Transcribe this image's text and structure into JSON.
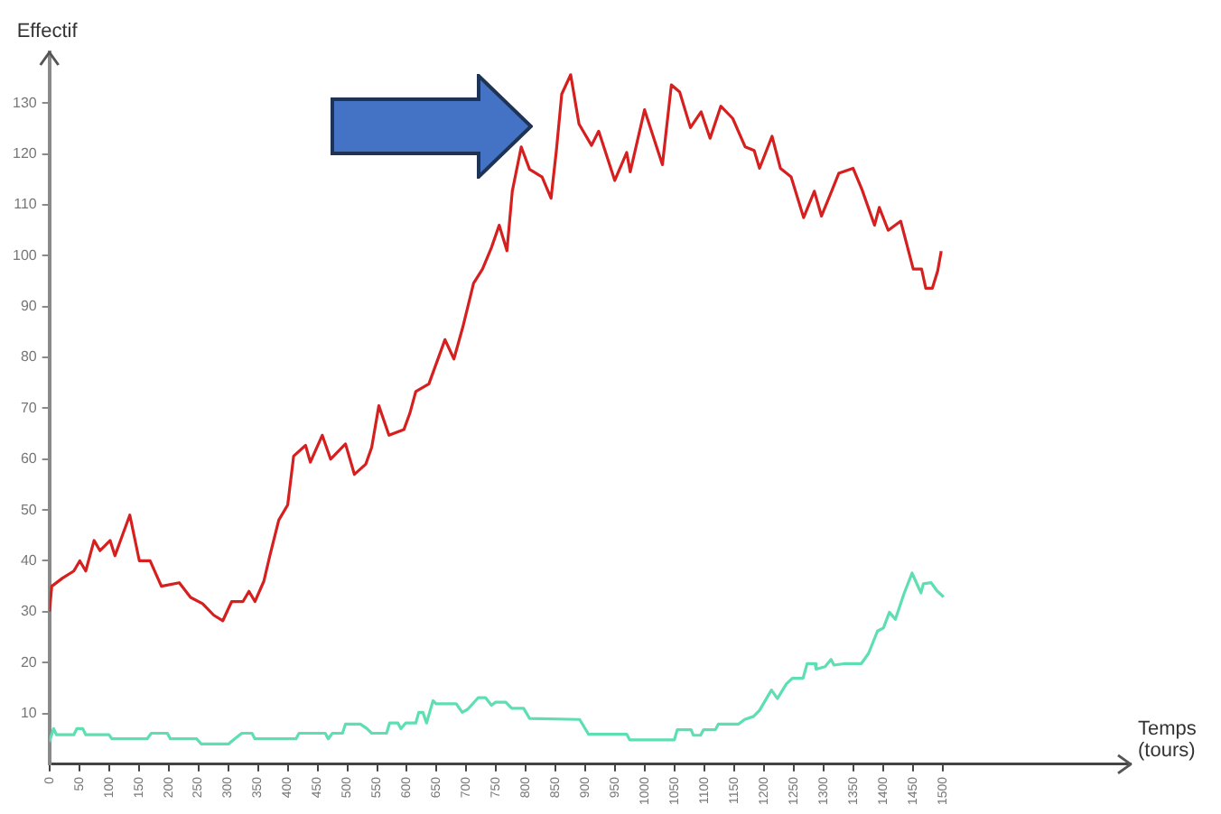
{
  "chart_data": {
    "type": "line",
    "xlabel": "Temps (tours)",
    "ylabel": "Effectif",
    "xlim": [
      0,
      1815
    ],
    "ylim": [
      0,
      140
    ],
    "xticks": [
      0,
      50,
      100,
      150,
      200,
      250,
      300,
      350,
      400,
      450,
      500,
      550,
      600,
      650,
      700,
      750,
      800,
      850,
      900,
      950,
      1000,
      1050,
      1100,
      1150,
      1200,
      1250,
      1300,
      1350,
      1400,
      1450,
      1500
    ],
    "yticks": [
      10,
      20,
      30,
      40,
      50,
      60,
      70,
      80,
      90,
      100,
      110,
      120,
      130
    ],
    "grid": false,
    "legend": false,
    "marker": "none",
    "line_style": "solid",
    "series": [
      {
        "color": "#d62020",
        "x": [
          0,
          4,
          22,
          41,
          51,
          61,
          75,
          85,
          102,
          110,
          124,
          135,
          151,
          169,
          188,
          218,
          237,
          257,
          276,
          291,
          306,
          325,
          335,
          345,
          360,
          370,
          385,
          400,
          410,
          430,
          438,
          458,
          472,
          497,
          512,
          531,
          541,
          553,
          570,
          595,
          605,
          615,
          637,
          664,
          679,
          694,
          712,
          727,
          742,
          755,
          768,
          777,
          792,
          806,
          827,
          842,
          851,
          860,
          875,
          889,
          910,
          922,
          949,
          969,
          975,
          999,
          1029,
          1044,
          1058,
          1076,
          1094,
          1109,
          1127,
          1147,
          1168,
          1183,
          1192,
          1213,
          1227,
          1245,
          1266,
          1284,
          1296,
          1313,
          1325,
          1349,
          1364,
          1385,
          1393,
          1408,
          1429,
          1450,
          1464,
          1471,
          1482,
          1491,
          1497
        ],
        "values": [
          30,
          35,
          36.6,
          38,
          40,
          38,
          44,
          42,
          44,
          41,
          45.5,
          49,
          40,
          40,
          35,
          35.7,
          32.8,
          31.6,
          29.3,
          28.2,
          32,
          32,
          34,
          32,
          36,
          41,
          48,
          51,
          60.6,
          62.7,
          59.4,
          64.7,
          60,
          63,
          57,
          59,
          62.3,
          70.5,
          64.7,
          65.8,
          69,
          73.3,
          74.8,
          83.5,
          79.7,
          86,
          94.6,
          97.4,
          101.6,
          106,
          101,
          112.7,
          121.4,
          117,
          115.5,
          111.3,
          120.7,
          131.8,
          135.6,
          125.9,
          121.7,
          124.5,
          114.8,
          120.3,
          116.5,
          128.7,
          117.9,
          133.6,
          132.2,
          125.2,
          128.3,
          123.1,
          129.4,
          127,
          121.4,
          120.7,
          117.2,
          123.5,
          117.2,
          115.5,
          107.5,
          112.7,
          107.8,
          112.7,
          116.2,
          117.2,
          113,
          106,
          109.5,
          105,
          106.8,
          97.4,
          97.4,
          93.6,
          93.6,
          97,
          100.9
        ]
      },
      {
        "color": "#5edfb2",
        "x": [
          0,
          7,
          12,
          41,
          46,
          56,
          61,
          100,
          105,
          164,
          171,
          198,
          203,
          247,
          255,
          301,
          311,
          323,
          340,
          345,
          414,
          419,
          463,
          468,
          475,
          492,
          497,
          522,
          533,
          541,
          566,
          571,
          585,
          590,
          598,
          615,
          620,
          627,
          633,
          644,
          649,
          683,
          693,
          702,
          720,
          732,
          742,
          749,
          766,
          776,
          796,
          806,
          890,
          905,
          969,
          974,
          1049,
          1054,
          1077,
          1081,
          1093,
          1098,
          1118,
          1123,
          1157,
          1167,
          1182,
          1192,
          1212,
          1222,
          1237,
          1247,
          1265,
          1272,
          1285,
          1287,
          1302,
          1312,
          1317,
          1336,
          1363,
          1375,
          1390,
          1400,
          1410,
          1420,
          1435,
          1448,
          1463,
          1467,
          1480,
          1490,
          1501
        ],
        "values": [
          4.4,
          7,
          5.8,
          5.8,
          7,
          7,
          5.8,
          5.8,
          5,
          5,
          6.1,
          6.1,
          5,
          5,
          4,
          4,
          5,
          6.1,
          6.1,
          5,
          5,
          6.1,
          6.1,
          5,
          6.1,
          6.1,
          7.9,
          7.9,
          7,
          6.1,
          6.1,
          8.1,
          8.1,
          7,
          8.1,
          8.1,
          10.2,
          10.2,
          8.1,
          12.5,
          11.9,
          11.9,
          10.2,
          10.8,
          13.1,
          13.1,
          11.6,
          12.2,
          12.2,
          11,
          11,
          9,
          8.8,
          5.9,
          5.9,
          4.8,
          4.8,
          6.8,
          6.8,
          5.7,
          5.7,
          6.8,
          6.8,
          7.9,
          7.9,
          8.8,
          9.4,
          10.6,
          14.6,
          12.9,
          15.8,
          16.9,
          16.9,
          19.8,
          19.8,
          18.7,
          19.2,
          20.6,
          19.5,
          19.8,
          19.8,
          21.8,
          26.2,
          26.8,
          29.9,
          28.5,
          33.7,
          37.6,
          33.7,
          35.5,
          35.7,
          34.1,
          32.9
        ]
      }
    ]
  }
}
